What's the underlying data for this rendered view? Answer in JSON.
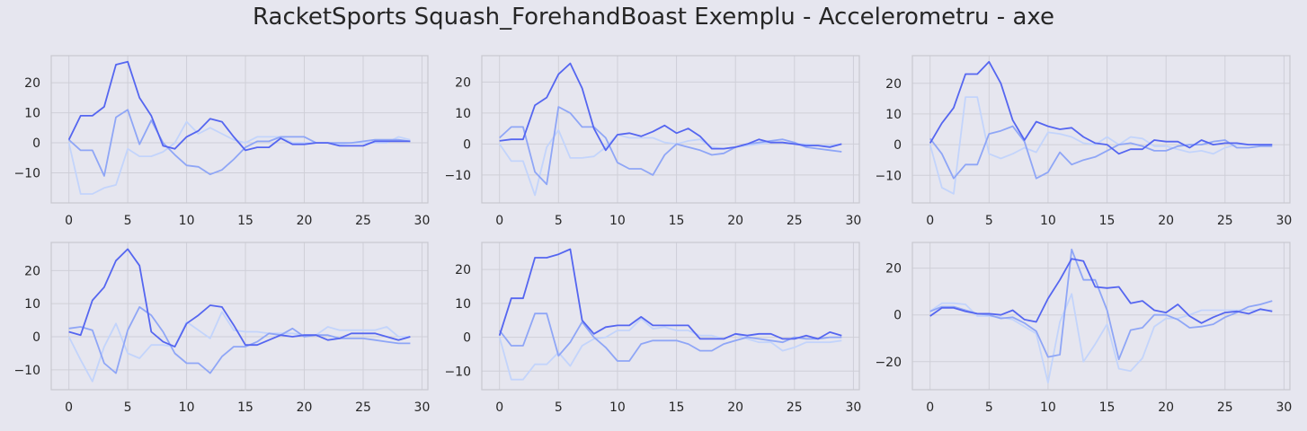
{
  "title": "RacketSports Squash_ForehandBoast Exemplu - Accelerometru - axe",
  "colors": {
    "background": "#e6e6ef",
    "grid": "#cfcfd8",
    "axes_border": "#c8c8d0",
    "series": [
      "#5566f0",
      "#8fa6f6",
      "#c3d4fb"
    ]
  },
  "chart_data": [
    {
      "type": "line",
      "x": [
        0,
        1,
        2,
        3,
        4,
        5,
        6,
        7,
        8,
        9,
        10,
        11,
        12,
        13,
        14,
        15,
        16,
        17,
        18,
        19,
        20,
        21,
        22,
        23,
        24,
        25,
        26,
        27,
        28,
        29
      ],
      "xlim": [
        -1.5,
        30.5
      ],
      "ylim": [
        -20,
        29
      ],
      "xticks": [
        0,
        5,
        10,
        15,
        20,
        25,
        30
      ],
      "yticks": [
        -10,
        0,
        10,
        20
      ],
      "grid": true,
      "series": [
        {
          "values": [
            1,
            9,
            9,
            12,
            26,
            27,
            15,
            9,
            -1,
            -2,
            2,
            4,
            8,
            7,
            2,
            -2.5,
            -1.5,
            -1.5,
            1.5,
            -0.5,
            -0.5,
            0,
            0,
            -1,
            -1,
            -1,
            0.5,
            0.5,
            0.5,
            0.5
          ]
        },
        {
          "values": [
            1,
            -2.5,
            -2.5,
            -11,
            8.5,
            11,
            -0.5,
            7.5,
            0,
            -4,
            -7.5,
            -8,
            -10.5,
            -9,
            -5.5,
            -1.5,
            0.5,
            0.5,
            2,
            2,
            2,
            0,
            0,
            0,
            0,
            0.5,
            1,
            1,
            1,
            0.5
          ]
        },
        {
          "values": [
            0,
            -17,
            -17,
            -15,
            -14,
            -2,
            -4.5,
            -4.5,
            -3,
            0,
            7,
            3,
            5,
            3,
            1,
            0,
            2,
            2,
            2,
            0,
            0,
            0,
            0,
            -0.5,
            0,
            0,
            0,
            0,
            2,
            1
          ]
        }
      ]
    },
    {
      "type": "line",
      "x": [
        0,
        1,
        2,
        3,
        4,
        5,
        6,
        7,
        8,
        9,
        10,
        11,
        12,
        13,
        14,
        15,
        16,
        17,
        18,
        19,
        20,
        21,
        22,
        23,
        24,
        25,
        26,
        27,
        28,
        29
      ],
      "xlim": [
        -1.5,
        30.5
      ],
      "ylim": [
        -19,
        28.5
      ],
      "xticks": [
        0,
        5,
        10,
        15,
        20,
        25,
        30
      ],
      "yticks": [
        -10,
        0,
        10,
        20
      ],
      "grid": true,
      "series": [
        {
          "values": [
            1,
            1.5,
            1.5,
            12.5,
            15,
            22.5,
            26,
            18,
            5,
            -2,
            3,
            3.5,
            2.5,
            4,
            6,
            3.5,
            5,
            2.5,
            -1.5,
            -1.5,
            -1,
            0,
            1.5,
            0.5,
            0.5,
            0,
            -0.5,
            -0.5,
            -1,
            0
          ]
        },
        {
          "values": [
            2,
            5.5,
            5.5,
            -9,
            -13,
            12,
            10,
            5.5,
            5.5,
            2,
            -6,
            -8,
            -8,
            -10,
            -3.5,
            0,
            -1,
            -2,
            -3.5,
            -3,
            -1,
            0,
            0.5,
            1,
            1.5,
            0.5,
            -1,
            -1.5,
            -2,
            -2.5
          ]
        },
        {
          "values": [
            0,
            -5.5,
            -5.5,
            -16.5,
            -1,
            4.5,
            -4.5,
            -4.5,
            -4,
            -1,
            3,
            2,
            2,
            2,
            0.5,
            0,
            1,
            1.5,
            -1,
            -1.5,
            -1,
            -0.5,
            0,
            0.5,
            0.5,
            0,
            0,
            -0.5,
            -0.5,
            0
          ]
        }
      ]
    },
    {
      "type": "line",
      "x": [
        0,
        1,
        2,
        3,
        4,
        5,
        6,
        7,
        8,
        9,
        10,
        11,
        12,
        13,
        14,
        15,
        16,
        17,
        18,
        19,
        20,
        21,
        22,
        23,
        24,
        25,
        26,
        27,
        28,
        29
      ],
      "xlim": [
        -1.5,
        30.5
      ],
      "ylim": [
        -19,
        29
      ],
      "xticks": [
        0,
        5,
        10,
        15,
        20,
        25,
        30
      ],
      "yticks": [
        -10,
        0,
        10,
        20
      ],
      "grid": true,
      "series": [
        {
          "values": [
            0.5,
            7,
            12,
            23,
            23,
            27,
            20,
            8,
            1.5,
            7.5,
            6,
            5,
            5.5,
            2.5,
            0.5,
            0,
            -3,
            -1.5,
            -1.5,
            1.5,
            1,
            1,
            -1,
            1.5,
            0,
            0.5,
            0.5,
            0,
            0,
            0
          ]
        },
        {
          "values": [
            2,
            -3,
            -11,
            -6.5,
            -6.5,
            3.5,
            4.5,
            6,
            1,
            -11,
            -9,
            -2.5,
            -6.5,
            -5,
            -4,
            -2,
            0,
            0.5,
            -0.5,
            -2,
            -2,
            -0.5,
            0,
            0,
            1,
            1.5,
            -1,
            -1,
            -0.5,
            -0.5
          ]
        },
        {
          "values": [
            0,
            -14,
            -16,
            15.5,
            15.5,
            -3,
            -4.5,
            -3,
            -1,
            -2.5,
            4,
            3.5,
            2.5,
            0.5,
            0,
            2.5,
            0,
            2.5,
            2,
            -0.5,
            -0.5,
            -1.5,
            -2.5,
            -2,
            -3,
            -1,
            0,
            0,
            0,
            0
          ]
        }
      ]
    },
    {
      "type": "line",
      "x": [
        0,
        1,
        2,
        3,
        4,
        5,
        6,
        7,
        8,
        9,
        10,
        11,
        12,
        13,
        14,
        15,
        16,
        17,
        18,
        19,
        20,
        21,
        22,
        23,
        24,
        25,
        26,
        27,
        28,
        29
      ],
      "xlim": [
        -1.5,
        30.5
      ],
      "ylim": [
        -16,
        28.5
      ],
      "xticks": [
        0,
        5,
        10,
        15,
        20,
        25,
        30
      ],
      "yticks": [
        -10,
        0,
        10,
        20
      ],
      "grid": true,
      "series": [
        {
          "values": [
            1.5,
            0.5,
            11,
            15,
            23,
            26.5,
            21.5,
            1.5,
            -1.5,
            -3,
            4,
            6.5,
            9.5,
            9,
            3.5,
            -2.5,
            -2.5,
            -1,
            0.5,
            0,
            0.5,
            0.5,
            -1,
            -0.5,
            1,
            1,
            1,
            0,
            -1,
            0
          ]
        },
        {
          "values": [
            2.5,
            3,
            2,
            -8,
            -11,
            2,
            9,
            6.5,
            1.5,
            -5,
            -8,
            -8,
            -11,
            -6,
            -3,
            -3,
            -1.5,
            1,
            0.5,
            2.5,
            0,
            0.5,
            0.5,
            -0.5,
            -0.5,
            -0.5,
            -1,
            -1.5,
            -2,
            -2
          ]
        },
        {
          "values": [
            0,
            -7,
            -13.5,
            -3,
            4,
            -5,
            -6.5,
            -2.5,
            -2.5,
            -3,
            4.5,
            2,
            -0.5,
            7.5,
            2,
            1.5,
            1.5,
            1,
            1,
            1,
            0.5,
            0.5,
            3,
            2,
            2,
            2,
            2,
            3,
            0,
            0
          ]
        }
      ]
    },
    {
      "type": "line",
      "x": [
        0,
        1,
        2,
        3,
        4,
        5,
        6,
        7,
        8,
        9,
        10,
        11,
        12,
        13,
        14,
        15,
        16,
        17,
        18,
        19,
        20,
        21,
        22,
        23,
        24,
        25,
        26,
        27,
        28,
        29
      ],
      "xlim": [
        -1.5,
        30.5
      ],
      "ylim": [
        -15.5,
        28
      ],
      "xticks": [
        0,
        5,
        10,
        15,
        20,
        25,
        30
      ],
      "yticks": [
        -10,
        0,
        10,
        20
      ],
      "grid": true,
      "series": [
        {
          "values": [
            0.5,
            11.5,
            11.5,
            23.5,
            23.5,
            24.5,
            26,
            5,
            1,
            3,
            3.5,
            3.5,
            6,
            3.5,
            3.5,
            3.5,
            3.5,
            -0.5,
            -0.5,
            -0.5,
            1,
            0.5,
            1,
            1,
            -0.5,
            -0.5,
            0.5,
            -0.5,
            1.5,
            0.5
          ]
        },
        {
          "values": [
            2,
            -2.5,
            -2.5,
            7,
            7,
            -5.5,
            -1.5,
            4.5,
            0,
            -3,
            -7,
            -7,
            -2,
            -1,
            -1,
            -1,
            -2,
            -4,
            -4,
            -2,
            -1,
            0,
            -0.5,
            -1,
            -1.5,
            0,
            -0.5,
            -0.5,
            0,
            0
          ]
        },
        {
          "values": [
            0,
            -12.5,
            -12.5,
            -8,
            -8,
            -4.5,
            -8.5,
            -2.5,
            -0.5,
            0,
            2,
            2,
            5.5,
            2.5,
            3,
            2,
            2,
            0.5,
            0.5,
            -0.5,
            1,
            -0.5,
            -1.5,
            -1.5,
            -4,
            -3,
            -1.5,
            -1.5,
            -1.5,
            -1
          ]
        }
      ]
    },
    {
      "type": "line",
      "x": [
        0,
        1,
        2,
        3,
        4,
        5,
        6,
        7,
        8,
        9,
        10,
        11,
        12,
        13,
        14,
        15,
        16,
        17,
        18,
        19,
        20,
        21,
        22,
        23,
        24,
        25,
        26,
        27,
        28,
        29
      ],
      "xlim": [
        -1.5,
        30.5
      ],
      "ylim": [
        -32,
        31
      ],
      "xticks": [
        0,
        5,
        10,
        15,
        20,
        25,
        30
      ],
      "yticks": [
        -20,
        0,
        20
      ],
      "grid": true,
      "series": [
        {
          "values": [
            -0.5,
            3,
            3,
            1.5,
            0.5,
            0.5,
            0,
            2,
            -2,
            -3,
            7,
            15,
            24,
            23,
            12,
            11.5,
            12,
            5,
            6,
            2,
            1,
            4.5,
            -0.5,
            -3.5,
            -1,
            1,
            1.5,
            0.5,
            2.5,
            1.5
          ]
        },
        {
          "values": [
            1.5,
            3.5,
            3.5,
            2,
            0.5,
            0,
            -1.5,
            -1,
            -3.5,
            -7,
            -18,
            -17,
            28,
            15,
            15,
            2,
            -19,
            -6.5,
            -5.5,
            0,
            0,
            -2,
            -5.5,
            -5,
            -4,
            -1,
            1,
            3.5,
            4.5,
            6
          ]
        },
        {
          "values": [
            1.5,
            5,
            5,
            4.5,
            -0.5,
            -0.5,
            -1,
            -2,
            -5,
            -8,
            -29,
            -3,
            9,
            -20,
            -12.5,
            -4,
            -23,
            -24,
            -18.5,
            -5,
            -1.5,
            -1.5,
            0,
            2,
            2,
            2,
            2,
            2,
            2,
            2
          ]
        }
      ]
    }
  ]
}
